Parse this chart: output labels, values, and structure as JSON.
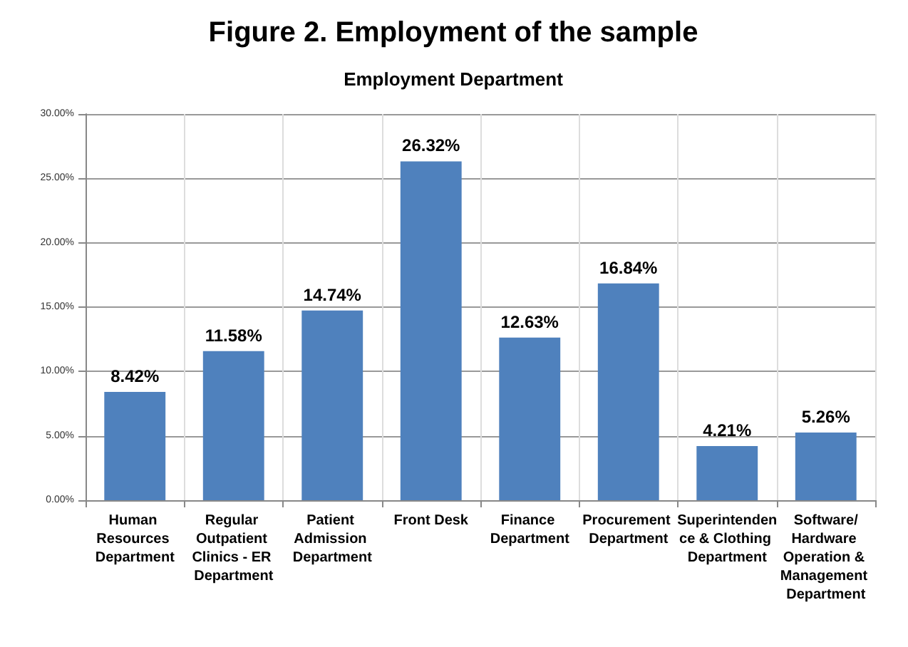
{
  "chart_data": {
    "type": "bar",
    "title": "Figure 2. Employment of the sample",
    "subtitle": "Employment Department",
    "categories": [
      "Human Resources Department",
      "Regular Outpatient Clinics - ER Department",
      "Patient Admission Department",
      "Front Desk",
      "Finance Department",
      "Procurement Department",
      "Superintendence & Clothing Department",
      "Software/Hardware Operation & Management Department"
    ],
    "values": [
      8.42,
      11.58,
      14.74,
      26.32,
      12.63,
      16.84,
      4.21,
      5.26
    ],
    "value_labels": [
      "8.42%",
      "11.58%",
      "14.74%",
      "26.32%",
      "12.63%",
      "16.84%",
      "4.21%",
      "5.26%"
    ],
    "color": "#4f81bd",
    "ylim": [
      0,
      30
    ],
    "yticks": [
      {
        "value": 0,
        "label": "0.00%"
      },
      {
        "value": 5,
        "label": "5.00%"
      },
      {
        "value": 10,
        "label": "10.00%"
      },
      {
        "value": 15,
        "label": "15.00%"
      },
      {
        "value": 20,
        "label": "20.00%"
      },
      {
        "value": 25,
        "label": "25.00%"
      },
      {
        "value": 30,
        "label": "30.00%"
      }
    ],
    "grid": true
  }
}
